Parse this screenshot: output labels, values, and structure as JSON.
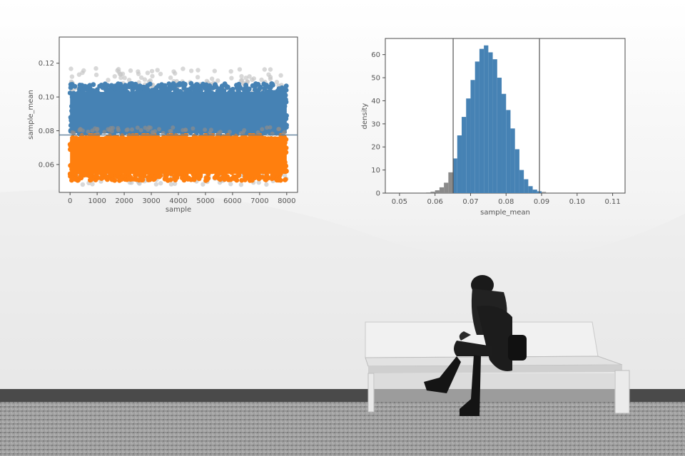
{
  "chart_data": [
    {
      "type": "scatter",
      "xlabel": "sample",
      "ylabel": "sample_mean",
      "xlim": [
        -400,
        8400
      ],
      "ylim": [
        0.0435,
        0.1355
      ],
      "x_ticks": [
        "0",
        "1000",
        "2000",
        "3000",
        "4000",
        "5000",
        "6000",
        "7000",
        "8000"
      ],
      "y_ticks": [
        "0.06",
        "0.08",
        "0.10",
        "0.12"
      ],
      "x_tick_values": [
        0,
        1000,
        2000,
        3000,
        4000,
        5000,
        6000,
        7000,
        8000
      ],
      "y_tick_values": [
        0.06,
        0.08,
        0.1,
        0.12
      ],
      "threshold": 0.0775,
      "x_range": [
        0,
        8000
      ],
      "series": [
        {
          "color": "#4682b4",
          "y_range": [
            0.0775,
            0.108
          ]
        },
        {
          "color": "#ff7f0e",
          "y_range": [
            0.0505,
            0.0775
          ]
        },
        {
          "color": "#c8c8c8",
          "y_range": [
            0.048,
            0.117
          ]
        }
      ],
      "grid": false,
      "legend": "none"
    },
    {
      "type": "bar",
      "subtype": "histogram",
      "xlabel": "sample_mean",
      "ylabel": "density",
      "xlim": [
        0.046,
        0.1135
      ],
      "ylim": [
        0,
        67
      ],
      "x_ticks": [
        "0.05",
        "0.06",
        "0.07",
        "0.08",
        "0.09",
        "0.10",
        "0.11"
      ],
      "y_ticks": [
        "0",
        "10",
        "20",
        "30",
        "40",
        "50",
        "60"
      ],
      "x_tick_values": [
        0.05,
        0.06,
        0.07,
        0.08,
        0.09,
        0.1,
        0.11
      ],
      "y_tick_values": [
        0,
        10,
        20,
        30,
        40,
        50,
        60
      ],
      "bin_width": 0.00125,
      "bin_start": 0.0575,
      "values": [
        0.3,
        0.6,
        1.2,
        2.5,
        4.5,
        9,
        15,
        25,
        33,
        41,
        49,
        57,
        62.5,
        64,
        61,
        58,
        50,
        43,
        36,
        28,
        19,
        10,
        6,
        3,
        1.5,
        0.8,
        0.5
      ],
      "vlines": [
        0.0651,
        0.0894
      ],
      "bar_color": "#4682b4",
      "tail_color": "#8a8a8a",
      "grid": false,
      "legend": "none"
    }
  ]
}
